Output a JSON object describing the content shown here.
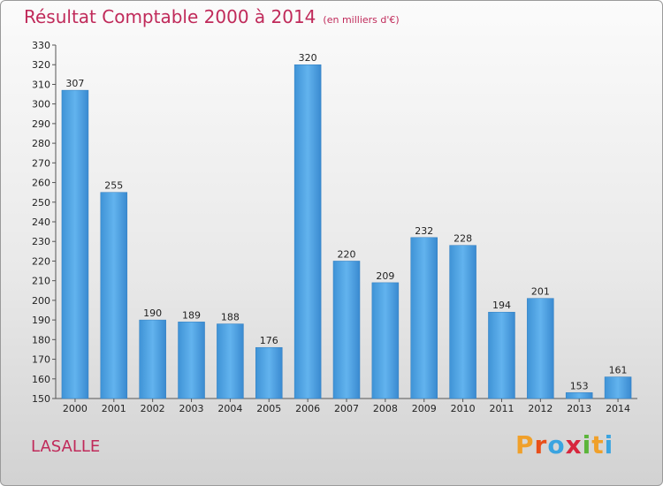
{
  "header": {
    "title": "Résultat Comptable 2000 à 2014",
    "subtitle": "(en milliers d'€)"
  },
  "footer": {
    "town": "LASALLE",
    "logo": {
      "letters": [
        "P",
        "r",
        "o",
        "x",
        "i",
        "t",
        "i"
      ],
      "colors": [
        "#f0a02a",
        "#e84f1a",
        "#3ba4e0",
        "#d7263d",
        "#5bb53a",
        "#f0a02a",
        "#3ba4e0"
      ]
    }
  },
  "chart_data": {
    "type": "bar",
    "title": "Résultat Comptable 2000 à 2014",
    "categories": [
      "2000",
      "2001",
      "2002",
      "2003",
      "2004",
      "2005",
      "2006",
      "2007",
      "2008",
      "2009",
      "2010",
      "2011",
      "2012",
      "2013",
      "2014"
    ],
    "values": [
      307,
      255,
      190,
      189,
      188,
      176,
      320,
      220,
      209,
      232,
      228,
      194,
      201,
      153,
      161
    ],
    "ylim": [
      150,
      330
    ],
    "yticks": [
      150,
      160,
      170,
      180,
      190,
      200,
      210,
      220,
      230,
      240,
      250,
      260,
      270,
      280,
      290,
      300,
      310,
      320,
      330
    ],
    "grid": false,
    "bar_color": "#4a9fe0"
  }
}
